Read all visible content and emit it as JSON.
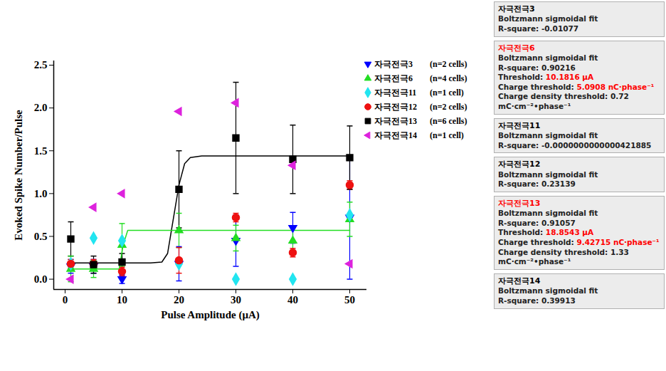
{
  "chart_data": {
    "type": "scatter",
    "x_label": "Pulse Amplitude (μA)",
    "y_label": "Evoked Spike Number/Pulse",
    "x": [
      1,
      5,
      10,
      20,
      30,
      40,
      50
    ],
    "xlim": [
      -2,
      53
    ],
    "xticks": [
      0,
      10,
      20,
      30,
      40,
      50
    ],
    "ylim": [
      -0.12,
      2.55
    ],
    "yticks": [
      {
        "value": 0,
        "label": "0.0"
      },
      {
        "value": 0.5,
        "label": "0.5"
      },
      {
        "value": 1,
        "label": "1.0"
      },
      {
        "value": 1.5,
        "label": "1.5"
      },
      {
        "value": 2,
        "label": "2.0"
      },
      {
        "value": 2.5,
        "label": "2.5"
      }
    ],
    "legend": "right",
    "series": [
      {
        "name": "자극전극3",
        "cells_label": "(n=2 cells)",
        "color": "#0000ff",
        "marker": "triangle-down",
        "values": [
          0.15,
          0.15,
          0.0,
          0.18,
          0.45,
          0.6,
          0.72
        ],
        "errors": [
          0.08,
          0.08,
          0.05,
          0.2,
          0.3,
          0.18,
          0.72
        ]
      },
      {
        "name": "자극전극6",
        "cells_label": "(n=4 cells)",
        "color": "#22dd22",
        "marker": "triangle",
        "values": [
          0.12,
          0.12,
          0.4,
          0.57,
          0.48,
          0.45,
          0.7
        ],
        "errors": [
          0.15,
          0.1,
          0.25,
          0.2,
          0.15,
          0.15,
          0.2
        ]
      },
      {
        "name": "자극전극11",
        "cells_label": "(n=1 cell)",
        "color": "#22e5f0",
        "marker": "diamond",
        "values": [
          0.18,
          0.48,
          0.45,
          0.18,
          0.0,
          0.0,
          0.75
        ],
        "errors": [
          null,
          null,
          null,
          null,
          null,
          null,
          null
        ]
      },
      {
        "name": "자극전극12",
        "cells_label": "(n=2 cells)",
        "color": "#ee1111",
        "marker": "circle",
        "values": [
          0.18,
          0.18,
          0.09,
          0.22,
          0.72,
          0.31,
          1.1
        ],
        "errors": [
          0.05,
          0.05,
          0.05,
          0.15,
          0.05,
          0.05,
          0.05
        ]
      },
      {
        "name": "자극전극13",
        "cells_label": "(n=6 cells)",
        "color": "#000000",
        "marker": "square",
        "values": [
          0.47,
          0.17,
          0.2,
          1.05,
          1.65,
          1.4,
          1.42
        ],
        "errors": [
          0.2,
          0.1,
          0.1,
          0.45,
          0.65,
          0.4,
          0.37
        ]
      },
      {
        "name": "자극전극14",
        "cells_label": "(n=1 cell)",
        "color": "#dd22dd",
        "marker": "triangle-left",
        "values": [
          0.0,
          0.84,
          1.0,
          1.96,
          2.06,
          1.33,
          0.18
        ],
        "errors": [
          null,
          null,
          null,
          null,
          null,
          null,
          null
        ]
      }
    ],
    "fits": [
      {
        "series": "자극전극13",
        "color": "#000000",
        "x": [
          1,
          15,
          17,
          18,
          19,
          20,
          21,
          22,
          24,
          50
        ],
        "values": [
          0.19,
          0.19,
          0.2,
          0.3,
          0.7,
          1.1,
          1.35,
          1.42,
          1.44,
          1.44
        ]
      },
      {
        "series": "자극전극6",
        "color": "#22dd22",
        "x": [
          1,
          9.5,
          10.2,
          11,
          50
        ],
        "values": [
          0.12,
          0.12,
          0.4,
          0.57,
          0.57
        ]
      }
    ],
    "annotations": [
      {
        "title": "자극전극3",
        "color": "#000000",
        "lines": [
          {
            "text": "Boltzmann sigmoidal fit"
          },
          {
            "text": "R-square: -0.01077"
          }
        ]
      },
      {
        "title": "자극전극6",
        "color": "#ff0000",
        "lines": [
          {
            "text": "Boltzmann sigmoidal fit"
          },
          {
            "text": "R-square: 0.90216"
          },
          {
            "text": "Threshold:",
            "value": "10.1816 μA"
          },
          {
            "text": "Charge threshold:",
            "value": "5.0908 nC·phase⁻¹"
          },
          {
            "text": "Charge density threshold: 0.72 mC·cm⁻²•phase⁻¹"
          }
        ]
      },
      {
        "title": "자극전극11",
        "color": "#000000",
        "lines": [
          {
            "text": "Boltzmann sigmoidal fit"
          },
          {
            "text": "R-square: -0.0000000000000421885"
          }
        ]
      },
      {
        "title": "자극전극12",
        "color": "#000000",
        "lines": [
          {
            "text": "Boltzmann sigmoidal fit"
          },
          {
            "text": "R-square: 0.23139"
          }
        ]
      },
      {
        "title": "자극전극13",
        "color": "#ff0000",
        "lines": [
          {
            "text": "Boltzmann sigmoidal fit"
          },
          {
            "text": "R-square: 0.91057"
          },
          {
            "text": "Threshold:",
            "value": "18.8543 μA"
          },
          {
            "text": "Charge threshold:",
            "value": "9.42715 nC·phase⁻¹"
          },
          {
            "text": "Charge density threshold: 1.33 mC·cm⁻²•phase⁻¹"
          }
        ]
      },
      {
        "title": "자극전극14",
        "color": "#000000",
        "lines": [
          {
            "text": "Boltzmann sigmoidal fit"
          },
          {
            "text": "R-square: 0.39913"
          }
        ]
      }
    ]
  }
}
